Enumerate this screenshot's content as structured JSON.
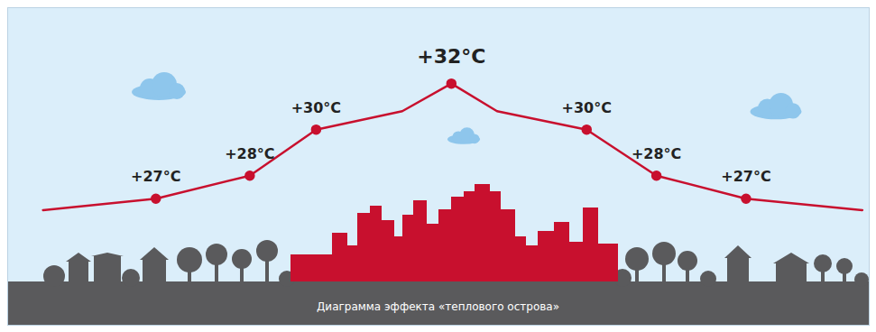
{
  "chart_data": {
    "type": "line",
    "caption": "Диаграмма эффекта «теплового острова»",
    "x": [
      4.1,
      17.2,
      28.1,
      35.8,
      45.8,
      51.5,
      56.8,
      67.2,
      75.3,
      85.7,
      99.2
    ],
    "values": [
      26.5,
      27,
      28,
      30,
      30.8,
      32,
      30.8,
      30,
      28,
      27,
      26.5
    ],
    "value_labels": [
      null,
      "+27°C",
      "+28°C",
      "+30°C",
      null,
      "+32°C",
      null,
      "+30°C",
      "+28°C",
      "+27°C",
      null
    ],
    "data_labels": true,
    "xlim": [
      0,
      100
    ],
    "ylim": [
      21.5,
      35.3
    ],
    "tick_labels": false,
    "grid": false,
    "color": "#c8102e",
    "marker": "circle",
    "line_style": "solid"
  }
}
